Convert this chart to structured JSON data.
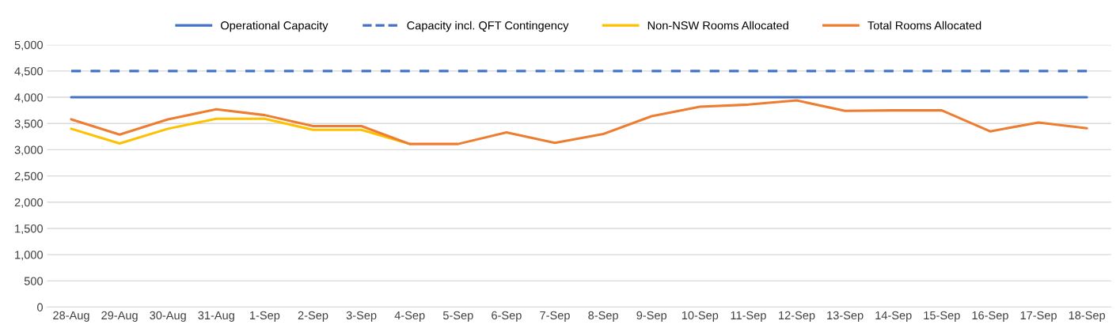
{
  "chart_data": {
    "type": "line",
    "categories": [
      "28-Aug",
      "29-Aug",
      "30-Aug",
      "31-Aug",
      "1-Sep",
      "2-Sep",
      "3-Sep",
      "4-Sep",
      "5-Sep",
      "6-Sep",
      "7-Sep",
      "8-Sep",
      "9-Sep",
      "10-Sep",
      "11-Sep",
      "12-Sep",
      "13-Sep",
      "14-Sep",
      "15-Sep",
      "16-Sep",
      "17-Sep",
      "18-Sep"
    ],
    "series": [
      {
        "name": "Operational Capacity",
        "color": "#4472c4",
        "line_style": "solid",
        "values": [
          4000,
          4000,
          4000,
          4000,
          4000,
          4000,
          4000,
          4000,
          4000,
          4000,
          4000,
          4000,
          4000,
          4000,
          4000,
          4000,
          4000,
          4000,
          4000,
          4000,
          4000,
          4000
        ]
      },
      {
        "name": "Capacity incl. QFT Contingency",
        "color": "#4472c4",
        "line_style": "dashed",
        "values": [
          4500,
          4500,
          4500,
          4500,
          4500,
          4500,
          4500,
          4500,
          4500,
          4500,
          4500,
          4500,
          4500,
          4500,
          4500,
          4500,
          4500,
          4500,
          4500,
          4500,
          4500,
          4500
        ]
      },
      {
        "name": "Non-NSW Rooms Allocated",
        "color": "#ffc000",
        "line_style": "solid",
        "values": [
          3400,
          3120,
          3400,
          3590,
          3590,
          3380,
          3380,
          3110,
          null,
          null,
          null,
          null,
          null,
          null,
          null,
          null,
          null,
          null,
          null,
          null,
          null,
          null
        ]
      },
      {
        "name": "Total Rooms Allocated",
        "color": "#ed7d31",
        "line_style": "solid",
        "values": [
          3580,
          3290,
          3580,
          3770,
          3660,
          3450,
          3450,
          3110,
          3110,
          3330,
          3130,
          3300,
          3640,
          3820,
          3860,
          3940,
          3740,
          3750,
          3750,
          3350,
          3520,
          3410
        ]
      }
    ],
    "ylim": [
      0,
      5000
    ],
    "yticks": [
      {
        "value": 0,
        "label": "0"
      },
      {
        "value": 500,
        "label": "500"
      },
      {
        "value": 1000,
        "label": "1,000"
      },
      {
        "value": 1500,
        "label": "1,500"
      },
      {
        "value": 2000,
        "label": "2,000"
      },
      {
        "value": 2500,
        "label": "2,500"
      },
      {
        "value": 3000,
        "label": "3,000"
      },
      {
        "value": 3500,
        "label": "3,500"
      },
      {
        "value": 4000,
        "label": "4,000"
      },
      {
        "value": 4500,
        "label": "4,500"
      },
      {
        "value": 5000,
        "label": "5,000"
      }
    ],
    "grid": "y",
    "legend": "top",
    "marker": "none"
  }
}
